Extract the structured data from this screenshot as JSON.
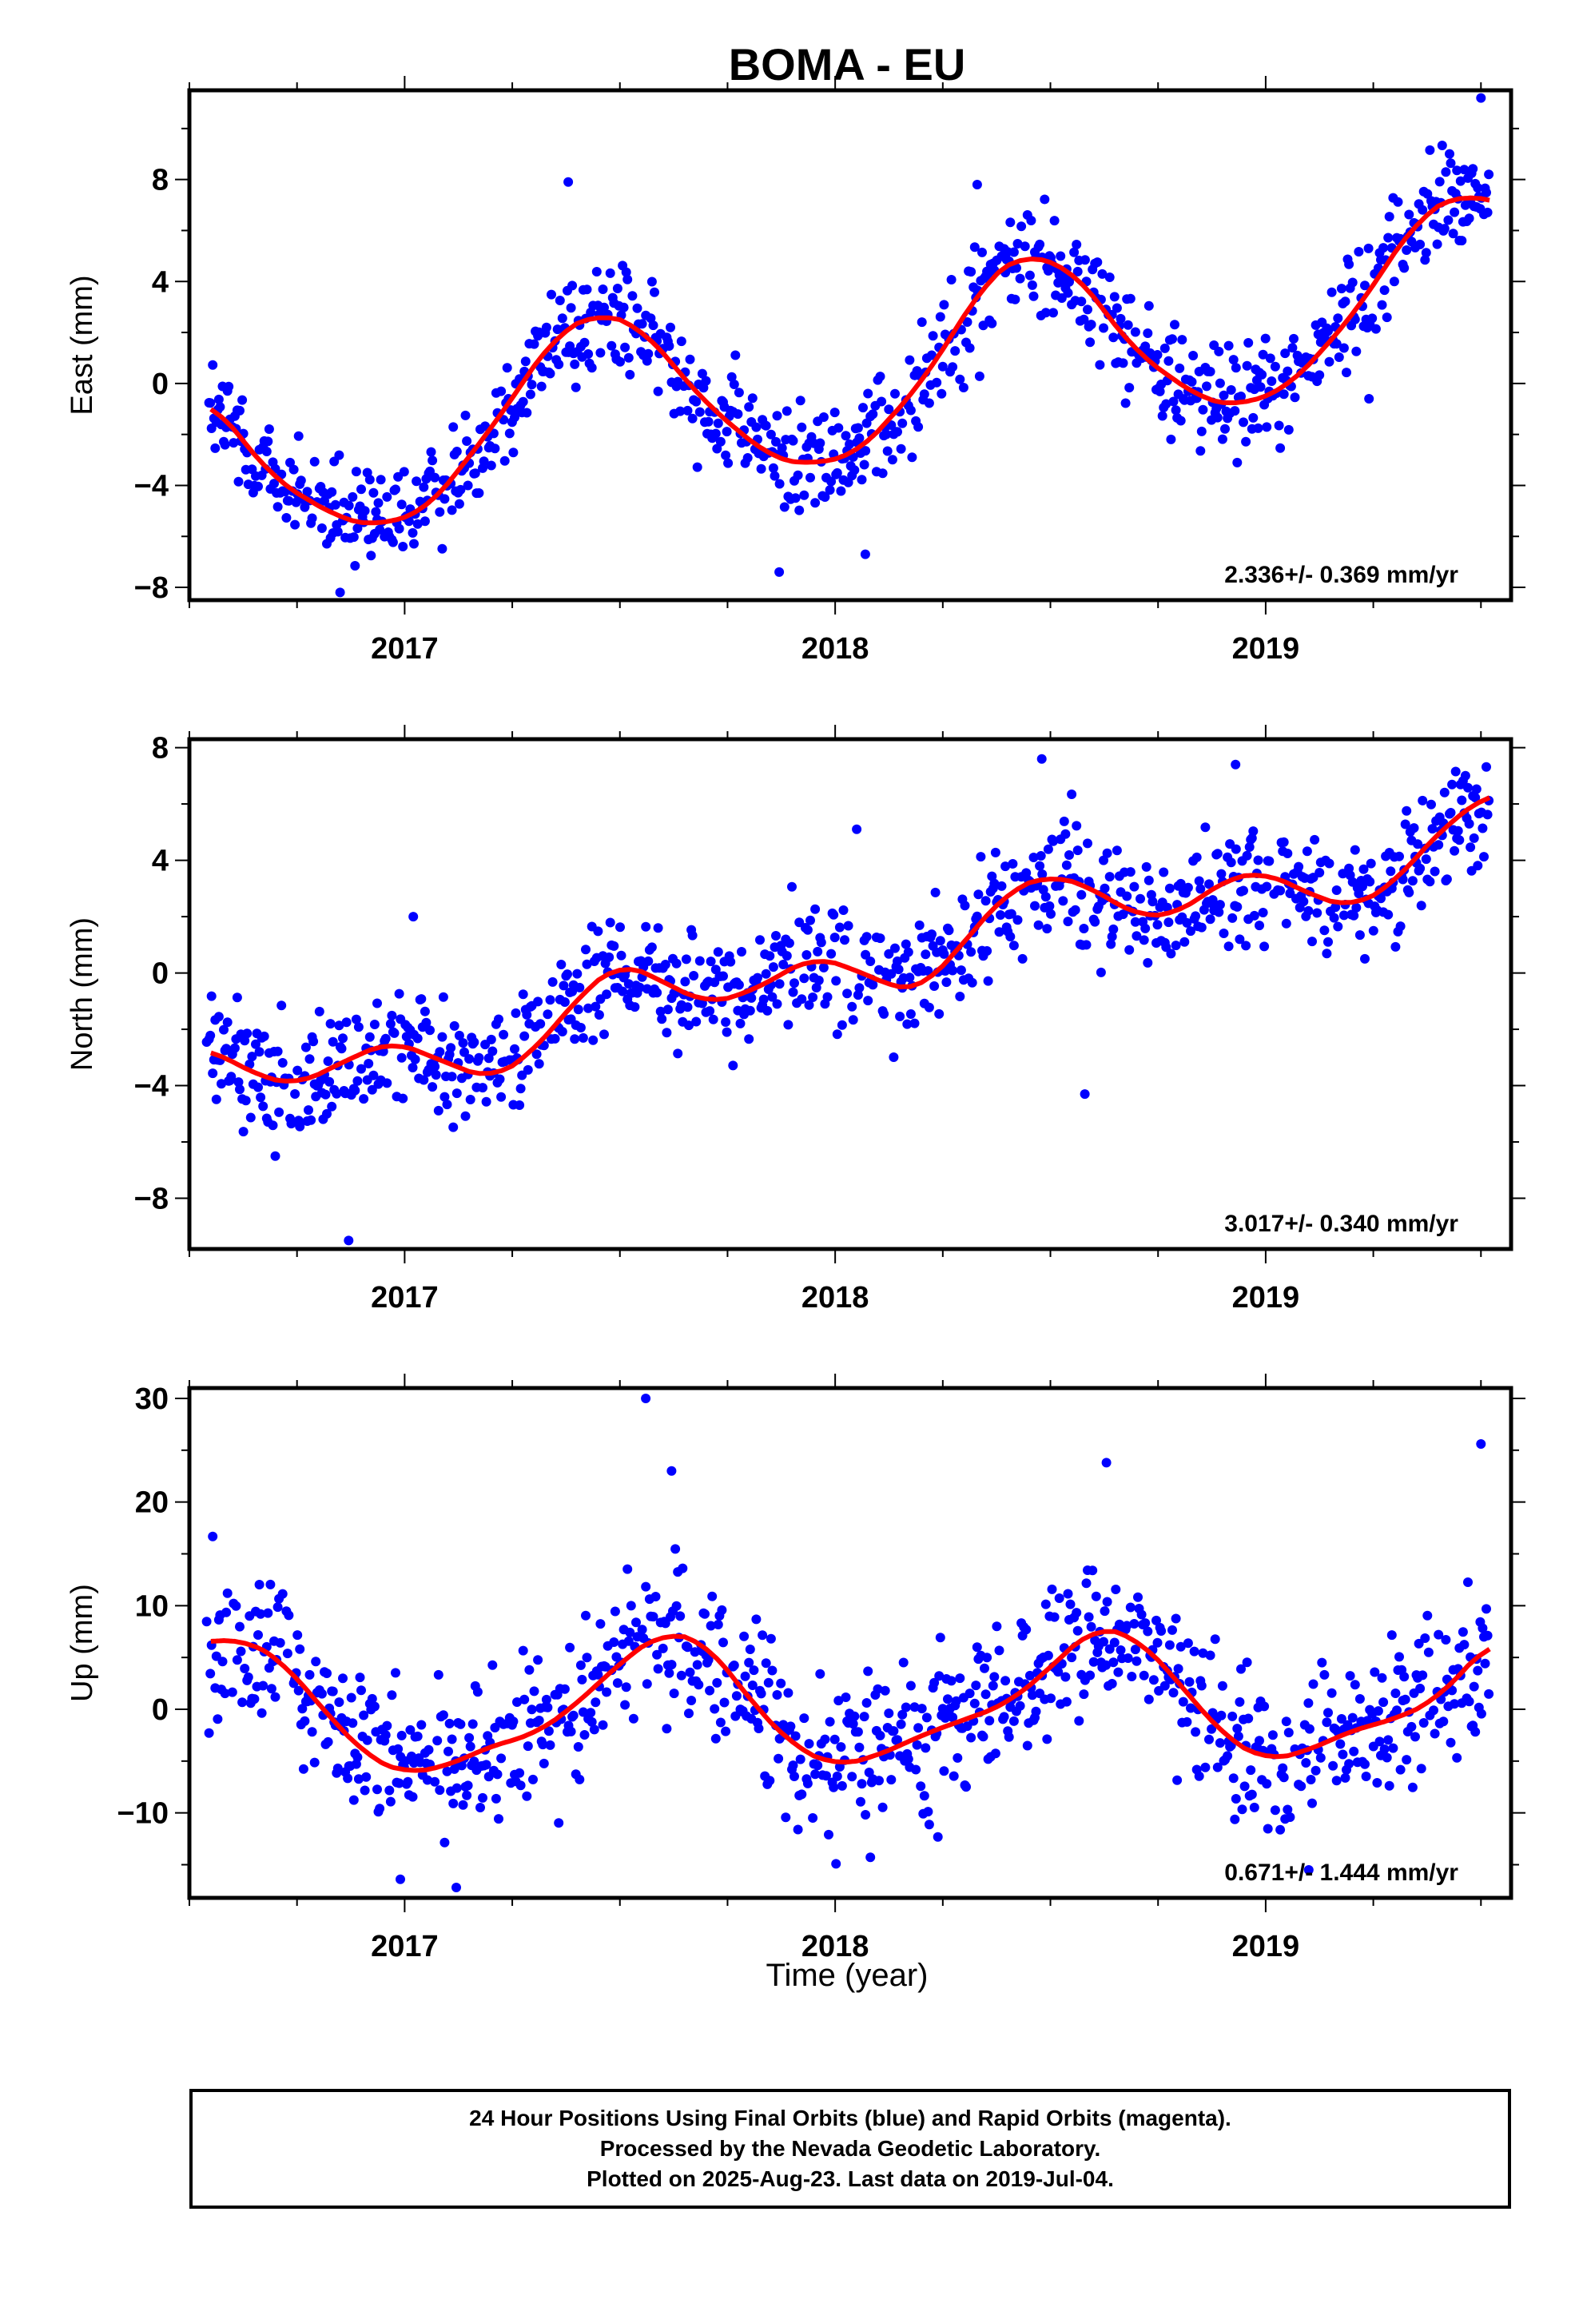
{
  "title": "BOMA - EU",
  "xlabel": "Time (year)",
  "footer": {
    "line1": "24 Hour Positions Using Final Orbits (blue) and Rapid Orbits (magenta).",
    "line2": "Processed by the Nevada Geodetic Laboratory.",
    "line3": "Plotted on 2025-Aug-23. Last data on 2019-Jul-04."
  },
  "colors": {
    "points": "#0000ff",
    "fit": "#ff0000",
    "axes": "#000000"
  },
  "chart_data": [
    {
      "type": "scatter",
      "ylabel": "East (mm)",
      "rate": "2.336+/- 0.369 mm/yr",
      "xlim": [
        2016.5,
        2019.57
      ],
      "ylim": [
        -8.5,
        11.5
      ],
      "yticks": [
        -8,
        -4,
        0,
        4,
        8
      ],
      "xticks": [
        2017,
        2018,
        2019
      ],
      "fit": {
        "x": [
          2016.55,
          2016.7,
          2016.85,
          2016.93,
          2017.05,
          2017.2,
          2017.35,
          2017.45,
          2017.55,
          2017.7,
          2017.85,
          2017.93,
          2018.05,
          2018.2,
          2018.35,
          2018.43,
          2018.55,
          2018.7,
          2018.85,
          2018.93,
          2019.05,
          2019.2,
          2019.35,
          2019.45,
          2019.52
        ],
        "y": [
          -0.7,
          -3.8,
          -5.3,
          -5.6,
          -5.0,
          -1.8,
          1.9,
          2.8,
          2.2,
          -0.8,
          -2.9,
          -3.2,
          -2.8,
          0.0,
          4.0,
          5.1,
          4.5,
          1.2,
          -0.6,
          -0.9,
          -0.2,
          2.6,
          6.4,
          7.5,
          7.1
        ]
      },
      "outliers": [
        {
          "x": 2017.38,
          "y": 7.9
        },
        {
          "x": 2018.33,
          "y": 7.8
        },
        {
          "x": 2019.5,
          "y": 11.2
        },
        {
          "x": 2017.87,
          "y": -7.4
        },
        {
          "x": 2016.85,
          "y": -8.2
        },
        {
          "x": 2018.07,
          "y": -6.7
        },
        {
          "x": 2019.24,
          "y": -0.6
        }
      ]
    },
    {
      "type": "scatter",
      "ylabel": "North (mm)",
      "rate": "3.017+/- 0.340 mm/yr",
      "xlim": [
        2016.5,
        2019.57
      ],
      "ylim": [
        -9.8,
        8.3
      ],
      "yticks": [
        -8,
        -4,
        0,
        4,
        8
      ],
      "xticks": [
        2017,
        2018,
        2019
      ],
      "fit": {
        "x": [
          2016.55,
          2016.65,
          2016.75,
          2016.85,
          2016.97,
          2017.1,
          2017.2,
          2017.3,
          2017.4,
          2017.5,
          2017.6,
          2017.7,
          2017.8,
          2017.95,
          2018.05,
          2018.15,
          2018.2,
          2018.3,
          2018.4,
          2018.5,
          2018.6,
          2018.7,
          2018.8,
          2018.9,
          2019.0,
          2019.1,
          2019.2,
          2019.3,
          2019.4,
          2019.52
        ],
        "y": [
          -2.7,
          -3.6,
          -4.0,
          -3.2,
          -2.4,
          -3.2,
          -3.8,
          -2.8,
          -0.9,
          0.4,
          -0.3,
          -1.1,
          -0.7,
          0.6,
          0.1,
          -0.6,
          -0.6,
          1.1,
          2.9,
          3.5,
          3.0,
          2.0,
          2.1,
          3.3,
          3.6,
          2.8,
          2.3,
          3.2,
          5.0,
          6.4
        ]
      },
      "outliers": [
        {
          "x": 2016.87,
          "y": -9.5
        },
        {
          "x": 2017.02,
          "y": 2.0
        },
        {
          "x": 2018.05,
          "y": 5.1
        },
        {
          "x": 2018.58,
          "y": -4.3
        },
        {
          "x": 2018.48,
          "y": 7.6
        },
        {
          "x": 2018.93,
          "y": 7.4
        }
      ]
    },
    {
      "type": "scatter",
      "ylabel": "Up (mm)",
      "rate": "0.671+/- 1.444 mm/yr",
      "xlim": [
        2016.5,
        2019.57
      ],
      "ylim": [
        -18.2,
        31
      ],
      "yticks": [
        -10,
        0,
        10,
        20,
        30
      ],
      "xticks": [
        2017,
        2018,
        2019
      ],
      "fit": {
        "x": [
          2016.55,
          2016.63,
          2016.72,
          2016.82,
          2016.92,
          2017.0,
          2017.1,
          2017.2,
          2017.3,
          2017.4,
          2017.5,
          2017.6,
          2017.7,
          2017.8,
          2017.9,
          2018.0,
          2018.1,
          2018.2,
          2018.3,
          2018.4,
          2018.5,
          2018.6,
          2018.7,
          2018.8,
          2018.9,
          2019.0,
          2019.1,
          2019.2,
          2019.3,
          2019.4,
          2019.52
        ],
        "y": [
          6.5,
          6.8,
          4.5,
          -0.5,
          -4.8,
          -6.2,
          -5.5,
          -3.5,
          -2.5,
          0.5,
          4.5,
          7.5,
          6.5,
          1.0,
          -3.5,
          -5.5,
          -4.5,
          -2.5,
          -1.0,
          0.5,
          4.0,
          8.0,
          7.0,
          2.5,
          -2.5,
          -5.0,
          -4.0,
          -2.0,
          -1.0,
          1.0,
          6.5
        ]
      },
      "outliers": [
        {
          "x": 2017.56,
          "y": 30
        },
        {
          "x": 2017.62,
          "y": 23
        },
        {
          "x": 2018.63,
          "y": 23.8
        },
        {
          "x": 2019.5,
          "y": 25.6
        },
        {
          "x": 2016.99,
          "y": -16.4
        },
        {
          "x": 2017.12,
          "y": -17.2
        },
        {
          "x": 2019.1,
          "y": -15.5
        }
      ]
    }
  ]
}
